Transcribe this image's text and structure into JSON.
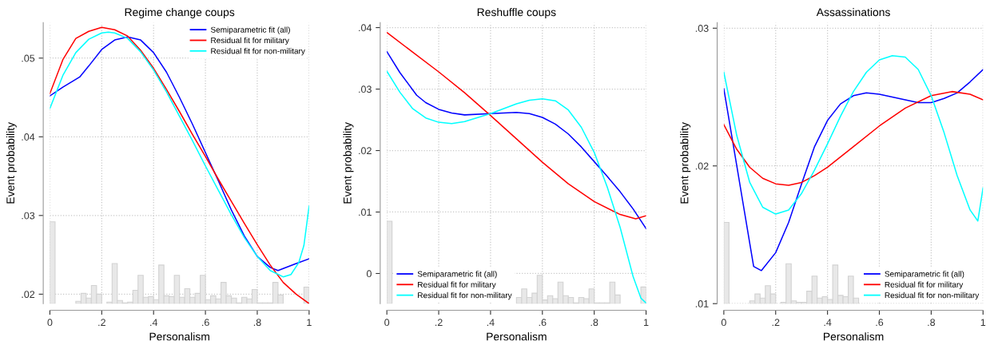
{
  "chart_data": [
    {
      "type": "line",
      "title": "Regime change coups",
      "xlabel": "Personalism",
      "ylabel": "Event probability",
      "grid": true,
      "legend": "top right",
      "line_style": "solid",
      "marker": "none",
      "xlim": [
        0,
        1
      ],
      "xticks": [
        0,
        {
          "value": 0.2,
          "label": ".2"
        },
        {
          "value": 0.4,
          "label": ".4"
        },
        {
          "value": 0.6,
          "label": ".6"
        },
        {
          "value": 0.8,
          "label": ".8"
        },
        1
      ],
      "ylim": [
        0.0188,
        0.0545
      ],
      "yticks": [
        {
          "value": 0.02,
          "label": ".02"
        },
        {
          "value": 0.03,
          "label": ".03"
        },
        {
          "value": 0.04,
          "label": ".04"
        },
        {
          "value": 0.05,
          "label": ".05"
        }
      ],
      "series": [
        {
          "type": "histogram",
          "color": "#e8e8e8",
          "bins": [
            0,
            0.02,
            0.04,
            0.06,
            0.08,
            0.1,
            0.12,
            0.14,
            0.16,
            0.18,
            0.2,
            0.22,
            0.24,
            0.26,
            0.28,
            0.3,
            0.32,
            0.34,
            0.36,
            0.38,
            0.4,
            0.42,
            0.44,
            0.46,
            0.48,
            0.5,
            0.52,
            0.54,
            0.56,
            0.58,
            0.6,
            0.62,
            0.64,
            0.66,
            0.68,
            0.7,
            0.72,
            0.74,
            0.76,
            0.78,
            0.8,
            0.82,
            0.84,
            0.86,
            0.88,
            0.9,
            0.92,
            0.94,
            0.96,
            0.98,
            1
          ],
          "values": [
            0.0104,
            null,
            null,
            null,
            null,
            0.0003,
            0.0013,
            0.0007,
            0.0023,
            0.0012,
            null,
            0.0002,
            0.0051,
            0.0004,
            0.0001,
            0.0002,
            0.0017,
            0.0036,
            0.0008,
            0.0009,
            0.0005,
            0.0049,
            0.001,
            0.0009,
            0.0036,
            0.0008,
            0.0019,
            0.0008,
            0.0013,
            0.0036,
            0.0005,
            0.001,
            0.0006,
            0.0027,
            0.001,
            0.0007,
            0.0001,
            0.0008,
            0.0006,
            0.0018,
            0.0001,
            0.0001,
            0.0001,
            0.0027,
            0.0011,
            null,
            null,
            null,
            null,
            0.0021
          ],
          "base": [
            0.0188,
            null,
            null,
            null,
            null,
            0.0188,
            0.0188,
            0.0188,
            0.0188,
            0.0188,
            null,
            0.0188,
            0.0188,
            0.0188,
            0.0188,
            0.0188,
            0.0188,
            0.0188,
            0.0188,
            0.0188,
            0.0188,
            0.0188,
            0.0188,
            0.0188,
            0.0188,
            0.0188,
            0.0188,
            0.0188,
            0.0188,
            0.0188,
            0.0188,
            0.0188,
            0.0188,
            0.0188,
            0.0188,
            0.0188,
            0.0188,
            0.0188,
            0.0188,
            0.0188,
            0.0188,
            0.0188,
            0.0188,
            0.0188,
            0.0188,
            null,
            null,
            null,
            null,
            0.0188
          ]
        },
        {
          "name": "Semiparametric fit (all)",
          "color": "#0000ff",
          "x": [
            0,
            0.05,
            0.115,
            0.15,
            0.2,
            0.25,
            0.3,
            0.35,
            0.4,
            0.45,
            0.5,
            0.55,
            0.6,
            0.65,
            0.7,
            0.75,
            0.8,
            0.85,
            0.88,
            0.95,
            1
          ],
          "values": [
            0.0452,
            0.0463,
            0.0476,
            0.049,
            0.0511,
            0.0523,
            0.0527,
            0.0523,
            0.0507,
            0.0482,
            0.045,
            0.0416,
            0.038,
            0.0344,
            0.0307,
            0.0274,
            0.0248,
            0.0234,
            0.023,
            0.0239,
            0.0245
          ]
        },
        {
          "name": "Residual fit for military",
          "color": "#ff0000",
          "x": [
            0,
            0.05,
            0.1,
            0.15,
            0.2,
            0.25,
            0.3,
            0.35,
            0.4,
            0.45,
            0.5,
            0.55,
            0.6,
            0.65,
            0.7,
            0.75,
            0.8,
            0.85,
            0.9,
            0.95,
            1
          ],
          "values": [
            0.0455,
            0.0498,
            0.0525,
            0.0534,
            0.0539,
            0.0536,
            0.0528,
            0.051,
            0.0487,
            0.046,
            0.0432,
            0.0403,
            0.0375,
            0.0346,
            0.0318,
            0.029,
            0.0263,
            0.0237,
            0.0215,
            0.02,
            0.0188
          ]
        },
        {
          "name": "Residual fit for non-military",
          "color": "#00ffff",
          "x": [
            0,
            0.05,
            0.1,
            0.15,
            0.2,
            0.225,
            0.25,
            0.3,
            0.35,
            0.4,
            0.45,
            0.5,
            0.55,
            0.6,
            0.65,
            0.7,
            0.75,
            0.8,
            0.85,
            0.9,
            0.93,
            0.96,
            0.98,
            1
          ],
          "values": [
            0.0436,
            0.0478,
            0.0507,
            0.0524,
            0.0532,
            0.0533,
            0.0532,
            0.0525,
            0.0508,
            0.0485,
            0.0457,
            0.0426,
            0.0395,
            0.0363,
            0.0332,
            0.0301,
            0.0272,
            0.0248,
            0.023,
            0.0222,
            0.0225,
            0.024,
            0.0262,
            0.0312
          ]
        }
      ]
    },
    {
      "type": "line",
      "title": "Reshuffle coups",
      "xlabel": "Personalism",
      "ylabel": "Event probability",
      "grid": true,
      "legend": "bottom left",
      "line_style": "solid",
      "marker": "none",
      "xlim": [
        0,
        1
      ],
      "xticks": [
        0,
        {
          "value": 0.2,
          "label": ".2"
        },
        {
          "value": 0.4,
          "label": ".4"
        },
        {
          "value": 0.6,
          "label": ".6"
        },
        {
          "value": 0.8,
          "label": ".8"
        },
        1
      ],
      "ylim": [
        -0.0049,
        0.0408
      ],
      "yticks": [
        0,
        {
          "value": 0.01,
          "label": ".01"
        },
        {
          "value": 0.02,
          "label": ".02"
        },
        {
          "value": 0.03,
          "label": ".03"
        },
        {
          "value": 0.04,
          "label": ".04"
        }
      ],
      "series": [
        {
          "type": "histogram",
          "color": "#e8e8e8",
          "bins": [
            0,
            0.02,
            0.04,
            0.06,
            0.08,
            0.1,
            0.12,
            0.14,
            0.16,
            0.18,
            0.2,
            0.22,
            0.24,
            0.26,
            0.28,
            0.3,
            0.32,
            0.34,
            0.36,
            0.38,
            0.4,
            0.42,
            0.44,
            0.46,
            0.48,
            0.5,
            0.52,
            0.54,
            0.56,
            0.58,
            0.6,
            0.62,
            0.64,
            0.66,
            0.68,
            0.7,
            0.72,
            0.74,
            0.76,
            0.78,
            0.8,
            0.82,
            0.84,
            0.86,
            0.88,
            0.9,
            0.92,
            0.94,
            0.96,
            0.98,
            1
          ],
          "values": [
            0.0134,
            null,
            null,
            null,
            null,
            null,
            null,
            null,
            null,
            null,
            null,
            null,
            null,
            null,
            null,
            null,
            null,
            null,
            null,
            null,
            null,
            null,
            null,
            null,
            null,
            0.001,
            0.0024,
            0.001,
            0.0017,
            0.0046,
            0.0006,
            0.0013,
            0.0008,
            0.0035,
            0.0013,
            0.001,
            0.0001,
            0.001,
            0.0008,
            0.0024,
            0.0001,
            0.0001,
            0.0001,
            0.0035,
            0.0014,
            null,
            null,
            null,
            null,
            0.0027
          ],
          "base": [
            -0.0049,
            null,
            null,
            null,
            null,
            null,
            null,
            null,
            null,
            null,
            null,
            null,
            null,
            null,
            null,
            null,
            null,
            null,
            null,
            null,
            null,
            null,
            null,
            null,
            null,
            -0.0049,
            -0.0049,
            -0.0049,
            -0.0049,
            -0.0049,
            -0.0049,
            -0.0049,
            -0.0049,
            -0.0049,
            -0.0049,
            -0.0049,
            -0.0049,
            -0.0049,
            -0.0049,
            -0.0049,
            -0.0049,
            -0.0049,
            -0.0049,
            -0.0049,
            -0.0049,
            null,
            null,
            null,
            null,
            -0.0049
          ]
        },
        {
          "name": "Semiparametric fit (all)",
          "color": "#0000ff",
          "x": [
            0,
            0.05,
            0.115,
            0.15,
            0.2,
            0.25,
            0.3,
            0.4,
            0.5,
            0.55,
            0.6,
            0.65,
            0.7,
            0.75,
            0.8,
            0.85,
            0.9,
            0.95,
            1
          ],
          "values": [
            0.0361,
            0.0327,
            0.029,
            0.0278,
            0.0267,
            0.0261,
            0.0258,
            0.026,
            0.0262,
            0.026,
            0.0254,
            0.0243,
            0.0227,
            0.0206,
            0.0182,
            0.0158,
            0.0133,
            0.0105,
            0.0073
          ]
        },
        {
          "name": "Residual fit for military",
          "color": "#ff0000",
          "x": [
            0,
            0.1,
            0.2,
            0.3,
            0.4,
            0.5,
            0.6,
            0.7,
            0.8,
            0.9,
            0.96,
            1
          ],
          "values": [
            0.0392,
            0.036,
            0.0328,
            0.0294,
            0.0257,
            0.0219,
            0.0181,
            0.0146,
            0.0117,
            0.0096,
            0.0089,
            0.0094
          ]
        },
        {
          "name": "Residual fit for non-military",
          "color": "#00ffff",
          "x": [
            0,
            0.05,
            0.1,
            0.15,
            0.2,
            0.25,
            0.3,
            0.4,
            0.5,
            0.55,
            0.6,
            0.65,
            0.7,
            0.75,
            0.8,
            0.85,
            0.9,
            0.95,
            0.98,
            1
          ],
          "values": [
            0.0329,
            0.0295,
            0.0268,
            0.0253,
            0.0246,
            0.0244,
            0.0247,
            0.026,
            0.0276,
            0.0282,
            0.0284,
            0.0281,
            0.0266,
            0.0238,
            0.0197,
            0.0141,
            0.0075,
            -0.0005,
            -0.004,
            -0.0048
          ]
        }
      ]
    },
    {
      "type": "line",
      "title": "Assassinations",
      "xlabel": "Personalism",
      "ylabel": "Event probability",
      "grid": true,
      "legend": "bottom right",
      "line_style": "solid",
      "marker": "none",
      "xlim": [
        0,
        1
      ],
      "xticks": [
        0,
        {
          "value": 0.2,
          "label": ".2"
        },
        {
          "value": 0.4,
          "label": ".4"
        },
        {
          "value": 0.6,
          "label": ".6"
        },
        {
          "value": 0.8,
          "label": ".8"
        },
        1
      ],
      "ylim": [
        0.01,
        0.0304
      ],
      "yticks": [
        {
          "value": 0.01,
          "label": ".01"
        },
        {
          "value": 0.02,
          "label": ".02"
        },
        {
          "value": 0.03,
          "label": ".03"
        }
      ],
      "series": [
        {
          "type": "histogram",
          "color": "#e8e8e8",
          "bins": [
            0,
            0.02,
            0.04,
            0.06,
            0.08,
            0.1,
            0.12,
            0.14,
            0.16,
            0.18,
            0.2,
            0.22,
            0.24,
            0.26,
            0.28,
            0.3,
            0.32,
            0.34,
            0.36,
            0.38,
            0.4,
            0.42,
            0.44,
            0.46,
            0.48,
            0.5,
            0.52,
            0.54,
            0.56,
            0.58,
            0.6,
            0.62,
            0.64,
            0.66,
            0.68,
            0.7,
            0.72,
            0.74,
            0.76,
            0.78,
            0.8,
            0.82,
            0.84,
            0.86,
            0.88,
            0.9,
            0.92,
            0.94,
            0.96,
            0.98,
            1
          ],
          "values": [
            0.0059,
            null,
            null,
            null,
            null,
            0.0002,
            0.0007,
            0.0004,
            0.0013,
            0.0007,
            null,
            0.0001,
            0.0029,
            0.0002,
            0.0001,
            0.0001,
            0.0009,
            0.002,
            0.0004,
            0.0005,
            0.0003,
            0.0028,
            0.0006,
            0.0005,
            0.002,
            0.0004,
            null,
            null,
            null,
            null,
            null,
            null,
            null,
            null,
            null,
            null,
            null,
            null,
            null,
            null,
            null,
            null,
            null,
            null,
            null,
            null,
            null,
            null,
            null,
            null
          ],
          "base": [
            0.01,
            null,
            null,
            null,
            null,
            0.01,
            0.01,
            0.01,
            0.01,
            0.01,
            null,
            0.01,
            0.01,
            0.01,
            0.01,
            0.01,
            0.01,
            0.01,
            0.01,
            0.01,
            0.01,
            0.01,
            0.01,
            0.01,
            0.01,
            0.01,
            null,
            null,
            null,
            null,
            null,
            null,
            null,
            null,
            null,
            null,
            null,
            null,
            null,
            null,
            null,
            null,
            null,
            null,
            null,
            null,
            null,
            null,
            null,
            null
          ]
        },
        {
          "name": "Semiparametric fit (all)",
          "color": "#0000ff",
          "x": [
            0,
            0.05,
            0.115,
            0.145,
            0.2,
            0.25,
            0.3,
            0.35,
            0.4,
            0.45,
            0.5,
            0.55,
            0.6,
            0.65,
            0.7,
            0.75,
            0.8,
            0.85,
            0.9,
            0.95,
            1
          ],
          "values": [
            0.0256,
            0.02,
            0.0127,
            0.0124,
            0.0137,
            0.0159,
            0.0187,
            0.0214,
            0.0233,
            0.0245,
            0.0251,
            0.0253,
            0.0252,
            0.025,
            0.0248,
            0.0246,
            0.0246,
            0.0249,
            0.0253,
            0.0261,
            0.027
          ]
        },
        {
          "name": "Residual fit for military",
          "color": "#ff0000",
          "x": [
            0,
            0.05,
            0.1,
            0.15,
            0.2,
            0.25,
            0.3,
            0.35,
            0.4,
            0.5,
            0.6,
            0.7,
            0.8,
            0.88,
            0.95,
            1
          ],
          "values": [
            0.023,
            0.0212,
            0.0199,
            0.0191,
            0.0187,
            0.0186,
            0.0188,
            0.0193,
            0.0199,
            0.0214,
            0.0229,
            0.0242,
            0.0251,
            0.0254,
            0.0252,
            0.0248
          ]
        },
        {
          "name": "Residual fit for non-military",
          "color": "#00ffff",
          "x": [
            0,
            0.05,
            0.1,
            0.15,
            0.2,
            0.25,
            0.3,
            0.35,
            0.4,
            0.45,
            0.5,
            0.55,
            0.6,
            0.65,
            0.7,
            0.75,
            0.8,
            0.85,
            0.9,
            0.95,
            0.98,
            1
          ],
          "values": [
            0.0268,
            0.0222,
            0.0188,
            0.017,
            0.0165,
            0.0168,
            0.018,
            0.0197,
            0.0216,
            0.0236,
            0.0254,
            0.0268,
            0.0277,
            0.028,
            0.0279,
            0.027,
            0.0251,
            0.0224,
            0.0193,
            0.0168,
            0.016,
            0.0184
          ]
        }
      ]
    }
  ]
}
